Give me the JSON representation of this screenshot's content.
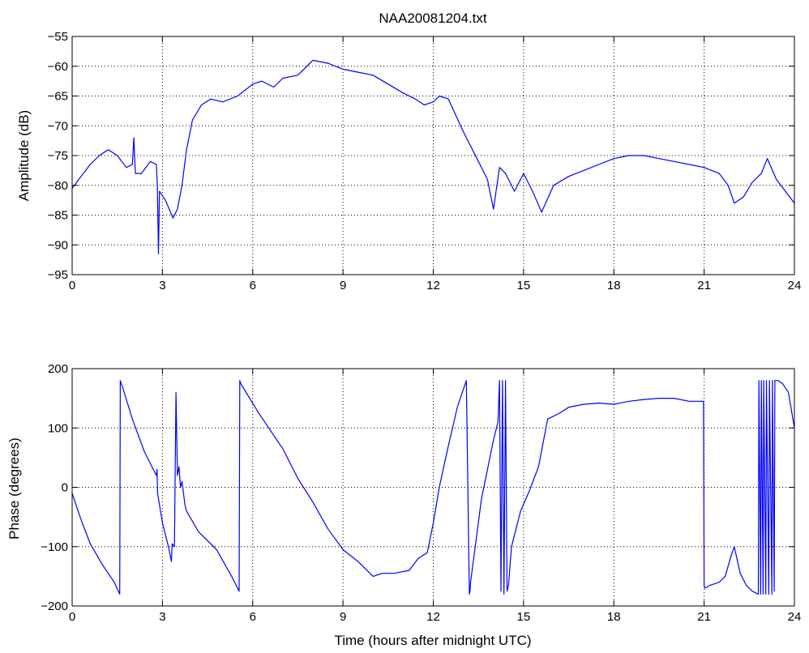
{
  "title": "NAA20081204.txt",
  "colors": {
    "series": "#0000ff",
    "axes": "#000000",
    "grid": "#000000",
    "background": "#ffffff"
  },
  "chart_data": [
    {
      "type": "line",
      "title": "NAA20081204.txt",
      "xlabel": "",
      "ylabel": "Amplitude (dB)",
      "xlim": [
        0,
        24
      ],
      "ylim": [
        -95,
        -55
      ],
      "xticks": [
        0,
        3,
        6,
        9,
        12,
        15,
        18,
        21,
        24
      ],
      "yticks": [
        -95,
        -90,
        -85,
        -80,
        -75,
        -70,
        -65,
        -60,
        -55
      ],
      "grid": true,
      "x": [
        0,
        0.3,
        0.6,
        0.9,
        1.2,
        1.5,
        1.8,
        2.0,
        2.05,
        2.1,
        2.3,
        2.6,
        2.8,
        2.83,
        2.87,
        2.9,
        3.1,
        3.35,
        3.5,
        3.65,
        3.8,
        4.0,
        4.3,
        4.6,
        5.0,
        5.5,
        6.0,
        6.3,
        6.7,
        7.0,
        7.5,
        8.0,
        8.5,
        9.0,
        9.5,
        10.0,
        10.5,
        11.0,
        11.4,
        11.7,
        12.0,
        12.2,
        12.5,
        13.0,
        13.5,
        13.8,
        14.0,
        14.2,
        14.4,
        14.7,
        15.0,
        15.3,
        15.6,
        16.0,
        16.5,
        17.0,
        17.5,
        18.0,
        18.5,
        19.0,
        19.5,
        20.0,
        20.5,
        21.0,
        21.5,
        21.8,
        22.0,
        22.3,
        22.6,
        22.9,
        23.1,
        23.4,
        23.7,
        24.0
      ],
      "values": [
        -80.5,
        -78.5,
        -76.5,
        -75,
        -74,
        -75,
        -77,
        -76.5,
        -72,
        -78,
        -78,
        -76,
        -76.5,
        -80,
        -91.5,
        -81,
        -82.5,
        -85.5,
        -84,
        -80,
        -74,
        -69,
        -66.5,
        -65.5,
        -66,
        -65,
        -63,
        -62.5,
        -63.5,
        -62,
        -61.5,
        -59,
        -59.5,
        -60.5,
        -61,
        -61.5,
        -63,
        -64.5,
        -65.5,
        -66.5,
        -66,
        -65,
        -65.5,
        -71,
        -76,
        -79,
        -84,
        -77,
        -78,
        -81,
        -78,
        -81,
        -84.5,
        -80,
        -78.5,
        -77.5,
        -76.5,
        -75.5,
        -75,
        -75,
        -75.5,
        -76,
        -76.5,
        -77,
        -78,
        -80,
        -83,
        -82,
        -79.5,
        -78,
        -75.5,
        -79,
        -81,
        -83
      ]
    },
    {
      "type": "line",
      "title": "",
      "xlabel": "Time (hours after midnight UTC)",
      "ylabel": "Phase (degrees)",
      "xlim": [
        0,
        24
      ],
      "ylim": [
        -200,
        200
      ],
      "xticks": [
        0,
        3,
        6,
        9,
        12,
        15,
        18,
        21,
        24
      ],
      "yticks": [
        -200,
        -100,
        0,
        100,
        200
      ],
      "grid": true,
      "x": [
        0,
        0.3,
        0.6,
        1.0,
        1.4,
        1.58,
        1.6,
        1.63,
        1.67,
        2.0,
        2.4,
        2.8,
        2.82,
        2.84,
        3.0,
        3.2,
        3.3,
        3.32,
        3.4,
        3.45,
        3.5,
        3.55,
        3.6,
        3.65,
        3.7,
        3.75,
        3.8,
        4.2,
        4.8,
        5.3,
        5.55,
        5.57,
        5.6,
        6.2,
        7.0,
        7.5,
        8.0,
        8.5,
        9.0,
        9.5,
        10.0,
        10.3,
        10.7,
        11.2,
        11.5,
        11.8,
        12.0,
        12.2,
        12.5,
        12.8,
        13.1,
        13.2,
        13.22,
        13.24,
        13.6,
        14.0,
        14.15,
        14.2,
        14.25,
        14.3,
        14.35,
        14.4,
        14.45,
        14.5,
        14.6,
        14.9,
        15.2,
        15.5,
        15.8,
        16.2,
        16.5,
        17.0,
        17.5,
        18.0,
        18.5,
        19.0,
        19.5,
        20.0,
        20.5,
        20.98,
        21.0,
        21.02,
        21.2,
        21.5,
        21.7,
        21.9,
        22.0,
        22.2,
        22.4,
        22.6,
        22.8,
        22.82,
        22.88,
        22.9,
        22.96,
        22.98,
        23.05,
        23.07,
        23.15,
        23.17,
        23.25,
        23.27,
        23.33,
        23.35,
        23.45,
        23.6,
        23.8,
        24.0
      ],
      "values": [
        -10,
        -55,
        -95,
        -130,
        -160,
        -180,
        180,
        175,
        170,
        115,
        60,
        20,
        30,
        -10,
        -60,
        -100,
        -125,
        -95,
        -100,
        160,
        20,
        35,
        0,
        10,
        -10,
        -30,
        -40,
        -75,
        -105,
        -150,
        -175,
        180,
        175,
        125,
        65,
        15,
        -25,
        -70,
        -105,
        -125,
        -150,
        -145,
        -145,
        -140,
        -120,
        -110,
        -60,
        0,
        70,
        135,
        180,
        -180,
        -175,
        -160,
        -20,
        80,
        110,
        180,
        -175,
        180,
        -180,
        180,
        -175,
        -165,
        -100,
        -40,
        -5,
        35,
        115,
        125,
        135,
        140,
        142,
        140,
        145,
        148,
        150,
        150,
        145,
        145,
        -165,
        -170,
        -165,
        -160,
        -150,
        -115,
        -100,
        -145,
        -165,
        -175,
        -180,
        180,
        -180,
        180,
        -180,
        180,
        -180,
        180,
        -180,
        180,
        -180,
        180,
        -175,
        180,
        180,
        175,
        160,
        100
      ]
    }
  ]
}
